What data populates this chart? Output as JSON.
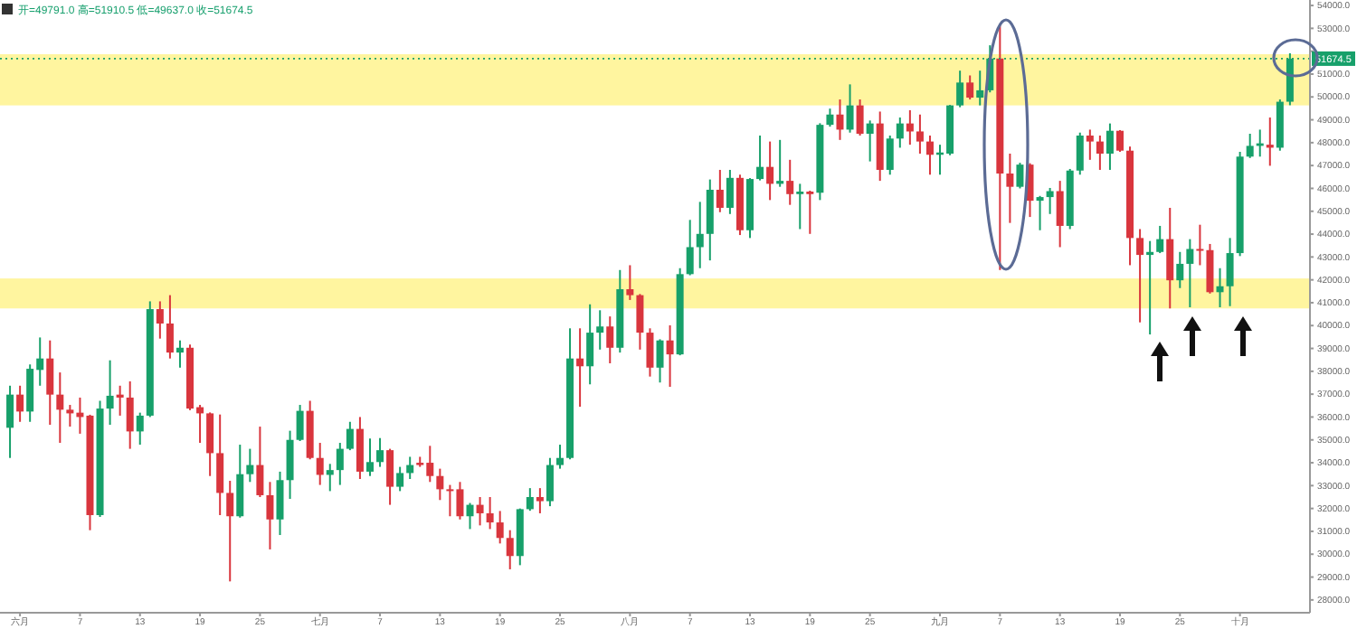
{
  "chart_data": {
    "type": "candlestick",
    "title": "开=49791.0 高=51910.5 低=49637.0 收=51674.5",
    "x": [
      "--05-31",
      "--06-01",
      "--06-02",
      "--06-03",
      "--06-04",
      "--06-05",
      "--06-06",
      "--06-07",
      "--06-08",
      "--06-09",
      "--06-10",
      "--06-11",
      "--06-12",
      "--06-13",
      "--06-14",
      "--06-15",
      "--06-16",
      "--06-17",
      "--06-18",
      "--06-19",
      "--06-20",
      "--06-21",
      "--06-22",
      "--06-23",
      "--06-24",
      "--06-25",
      "--06-26",
      "--06-27",
      "--06-28",
      "--06-29",
      "--06-30",
      "--07-01",
      "--07-02",
      "--07-03",
      "--07-04",
      "--07-05",
      "--07-06",
      "--07-07",
      "--07-08",
      "--07-09",
      "--07-10",
      "--07-11",
      "--07-12",
      "--07-13",
      "--07-14",
      "--07-15",
      "--07-16",
      "--07-17",
      "--07-18",
      "--07-19",
      "--07-20",
      "--07-21",
      "--07-22",
      "--07-23",
      "--07-24",
      "--07-25",
      "--07-26",
      "--07-27",
      "--07-28",
      "--07-29",
      "--07-30",
      "--07-31",
      "--08-01",
      "--08-02",
      "--08-03",
      "--08-04",
      "--08-05",
      "--08-06",
      "--08-07",
      "--08-08",
      "--08-09",
      "--08-10",
      "--08-11",
      "--08-12",
      "--08-13",
      "--08-14",
      "--08-15",
      "--08-16",
      "--08-17",
      "--08-18",
      "--08-19",
      "--08-20",
      "--08-21",
      "--08-22",
      "--08-23",
      "--08-24",
      "--08-25",
      "--08-26",
      "--08-27",
      "--08-28",
      "--08-29",
      "--08-30",
      "--08-31",
      "--09-01",
      "--09-02",
      "--09-03",
      "--09-04",
      "--09-05",
      "--09-06",
      "--09-07",
      "--09-08",
      "--09-09",
      "--09-10",
      "--09-11",
      "--09-12",
      "--09-13",
      "--09-14",
      "--09-15",
      "--09-16",
      "--09-17",
      "--09-18",
      "--09-19",
      "--09-20",
      "--09-21",
      "--09-22",
      "--09-23",
      "--09-24",
      "--09-25",
      "--09-26",
      "--09-27",
      "--09-28",
      "--09-29",
      "--09-30",
      "--10-01",
      "--10-02",
      "--10-03",
      "--10-04",
      "--10-05",
      "--10-06"
    ],
    "ohlc": [
      [
        35530,
        37370,
        34210,
        36980
      ],
      [
        36980,
        37370,
        35790,
        36240
      ],
      [
        36240,
        38300,
        35790,
        38110
      ],
      [
        38060,
        39480,
        37370,
        38560
      ],
      [
        38560,
        39350,
        35660,
        36980
      ],
      [
        36980,
        37950,
        34870,
        36320
      ],
      [
        36320,
        36530,
        35580,
        36160
      ],
      [
        36190,
        36850,
        35270,
        36000
      ],
      [
        36060,
        36100,
        31050,
        31710
      ],
      [
        31710,
        36710,
        31630,
        36370
      ],
      [
        36370,
        38480,
        35660,
        36930
      ],
      [
        36980,
        37370,
        36060,
        36850
      ],
      [
        36850,
        37560,
        34610,
        35370
      ],
      [
        35370,
        36190,
        34790,
        36060
      ],
      [
        36060,
        41060,
        36000,
        40720
      ],
      [
        40720,
        41060,
        39430,
        40090
      ],
      [
        40090,
        41330,
        38560,
        38820
      ],
      [
        38820,
        39350,
        38160,
        39030
      ],
      [
        39030,
        39170,
        36300,
        36370
      ],
      [
        36430,
        36530,
        34870,
        36160
      ],
      [
        36160,
        36200,
        33420,
        34420
      ],
      [
        34420,
        36110,
        31710,
        32680
      ],
      [
        32680,
        33210,
        28810,
        31660
      ],
      [
        31660,
        34790,
        31600,
        33500
      ],
      [
        33500,
        34610,
        33160,
        33900
      ],
      [
        33900,
        35580,
        32500,
        32580
      ],
      [
        32580,
        33160,
        30210,
        31520
      ],
      [
        31520,
        33610,
        30840,
        33240
      ],
      [
        33240,
        35400,
        32420,
        35000
      ],
      [
        35000,
        36530,
        34950,
        36270
      ],
      [
        36270,
        36710,
        34150,
        34210
      ],
      [
        34210,
        34870,
        33030,
        33470
      ],
      [
        33470,
        33950,
        32760,
        33680
      ],
      [
        33680,
        34870,
        33030,
        34610
      ],
      [
        34610,
        35790,
        34550,
        35480
      ],
      [
        35480,
        36000,
        33290,
        33610
      ],
      [
        33610,
        35060,
        33420,
        34030
      ],
      [
        34030,
        35080,
        33820,
        34550
      ],
      [
        34550,
        34610,
        32160,
        32950
      ],
      [
        32950,
        33820,
        32760,
        33550
      ],
      [
        33550,
        34260,
        33290,
        33900
      ],
      [
        34000,
        34260,
        33820,
        33900
      ],
      [
        34000,
        34740,
        33160,
        33420
      ],
      [
        33420,
        33740,
        32370,
        32840
      ],
      [
        32840,
        33030,
        31660,
        32760
      ],
      [
        32840,
        33160,
        31520,
        31660
      ],
      [
        31660,
        32240,
        31100,
        32160
      ],
      [
        32160,
        32500,
        31260,
        31790
      ],
      [
        31790,
        32500,
        31100,
        31390
      ],
      [
        31390,
        31890,
        30470,
        30710
      ],
      [
        30710,
        31050,
        29340,
        29920
      ],
      [
        29920,
        32000,
        29520,
        31970
      ],
      [
        31970,
        32890,
        31900,
        32500
      ],
      [
        32500,
        32890,
        31790,
        32320
      ],
      [
        32320,
        34210,
        32100,
        33900
      ],
      [
        33900,
        34790,
        33740,
        34210
      ],
      [
        34210,
        39880,
        34150,
        38560
      ],
      [
        38560,
        39880,
        36450,
        38220
      ],
      [
        38220,
        40930,
        37430,
        39690
      ],
      [
        39690,
        40670,
        38950,
        39960
      ],
      [
        39960,
        40400,
        38350,
        39030
      ],
      [
        39030,
        42430,
        38820,
        41590
      ],
      [
        41590,
        42640,
        41120,
        41330
      ],
      [
        41330,
        41380,
        38950,
        39690
      ],
      [
        39690,
        39880,
        37770,
        38160
      ],
      [
        38160,
        39400,
        37510,
        39350
      ],
      [
        39350,
        40010,
        37320,
        38740
      ],
      [
        38740,
        42510,
        38700,
        42250
      ],
      [
        42250,
        44620,
        42200,
        43430
      ],
      [
        43430,
        45410,
        42510,
        44010
      ],
      [
        44010,
        46390,
        42850,
        45940
      ],
      [
        45940,
        46810,
        44960,
        45150
      ],
      [
        45150,
        46810,
        44880,
        46460
      ],
      [
        46460,
        46600,
        43960,
        44170
      ],
      [
        44170,
        46450,
        43830,
        46410
      ],
      [
        46410,
        48310,
        46350,
        46940
      ],
      [
        46940,
        48050,
        45490,
        46200
      ],
      [
        46200,
        48120,
        46070,
        46330
      ],
      [
        46330,
        47250,
        45280,
        45750
      ],
      [
        45750,
        46200,
        44220,
        45860
      ],
      [
        45860,
        45900,
        44010,
        45750
      ],
      [
        45810,
        48850,
        45490,
        48780
      ],
      [
        48780,
        49490,
        48700,
        49230
      ],
      [
        49230,
        49890,
        48120,
        48570
      ],
      [
        48570,
        50550,
        48440,
        49630
      ],
      [
        49630,
        49890,
        48310,
        48390
      ],
      [
        48390,
        48970,
        47180,
        48840
      ],
      [
        48840,
        49360,
        46330,
        46810
      ],
      [
        46810,
        48310,
        46600,
        48180
      ],
      [
        48180,
        49100,
        47780,
        48840
      ],
      [
        48840,
        49420,
        47910,
        48490
      ],
      [
        48490,
        49230,
        47520,
        48050
      ],
      [
        48050,
        48310,
        46600,
        47470
      ],
      [
        47470,
        47910,
        46600,
        47570
      ],
      [
        47520,
        49650,
        47450,
        49630
      ],
      [
        49630,
        51150,
        49550,
        50630
      ],
      [
        50630,
        50940,
        49890,
        49970
      ],
      [
        49970,
        51150,
        49630,
        50290
      ],
      [
        50290,
        52260,
        50200,
        51680
      ],
      [
        51680,
        53180,
        42430,
        46650
      ],
      [
        46650,
        47520,
        44490,
        46070
      ],
      [
        46070,
        47120,
        46000,
        47040
      ],
      [
        47040,
        47100,
        44750,
        45460
      ],
      [
        45460,
        45670,
        44170,
        45620
      ],
      [
        45620,
        46020,
        44880,
        45880
      ],
      [
        45880,
        46330,
        43430,
        44360
      ],
      [
        44360,
        46850,
        44220,
        46780
      ],
      [
        46780,
        48440,
        46600,
        48310
      ],
      [
        48310,
        48570,
        47250,
        48050
      ],
      [
        48050,
        48310,
        46810,
        47520
      ],
      [
        47520,
        48840,
        46810,
        48520
      ],
      [
        48520,
        48550,
        47600,
        47650
      ],
      [
        47650,
        47830,
        42640,
        43830
      ],
      [
        43830,
        44220,
        40140,
        43090
      ],
      [
        43090,
        43700,
        39610,
        43220
      ],
      [
        43220,
        44360,
        43170,
        43780
      ],
      [
        43780,
        45150,
        40750,
        41980
      ],
      [
        41980,
        43220,
        41640,
        42700
      ],
      [
        42700,
        43780,
        40800,
        43350
      ],
      [
        43350,
        44410,
        42640,
        43300
      ],
      [
        43300,
        43570,
        41400,
        41460
      ],
      [
        41460,
        42510,
        40800,
        41720
      ],
      [
        41720,
        43830,
        40850,
        43170
      ],
      [
        43170,
        47600,
        43040,
        47390
      ],
      [
        47390,
        48390,
        47330,
        47860
      ],
      [
        47860,
        48570,
        47390,
        47970
      ],
      [
        47910,
        49100,
        46990,
        47780
      ],
      [
        47780,
        49890,
        47650,
        49790
      ],
      [
        49791,
        51910.5,
        49637,
        51674.5
      ]
    ],
    "xlim": [
      "--05-30",
      "--10-08"
    ],
    "xticks": [
      {
        "value": "--06-01",
        "label": "六月"
      },
      {
        "value": "--06-07",
        "label": "7"
      },
      {
        "value": "--06-13",
        "label": "13"
      },
      {
        "value": "--06-19",
        "label": "19"
      },
      {
        "value": "--06-25",
        "label": "25"
      },
      {
        "value": "--07-01",
        "label": "七月"
      },
      {
        "value": "--07-07",
        "label": "7"
      },
      {
        "value": "--07-13",
        "label": "13"
      },
      {
        "value": "--07-19",
        "label": "19"
      },
      {
        "value": "--07-25",
        "label": "25"
      },
      {
        "value": "--08-01",
        "label": "八月"
      },
      {
        "value": "--08-07",
        "label": "7"
      },
      {
        "value": "--08-13",
        "label": "13"
      },
      {
        "value": "--08-19",
        "label": "19"
      },
      {
        "value": "--08-25",
        "label": "25"
      },
      {
        "value": "--09-01",
        "label": "九月"
      },
      {
        "value": "--09-07",
        "label": "7"
      },
      {
        "value": "--09-13",
        "label": "13"
      },
      {
        "value": "--09-19",
        "label": "19"
      },
      {
        "value": "--09-25",
        "label": "25"
      },
      {
        "value": "--10-01",
        "label": "十月"
      }
    ],
    "ylim": [
      27440,
      54240
    ],
    "yticks": [
      {
        "value": 28000,
        "label": "28000.0"
      },
      {
        "value": 29000,
        "label": "29000.0"
      },
      {
        "value": 30000,
        "label": "30000.0"
      },
      {
        "value": 31000,
        "label": "31000.0"
      },
      {
        "value": 32000,
        "label": "32000.0"
      },
      {
        "value": 33000,
        "label": "33000.0"
      },
      {
        "value": 34000,
        "label": "34000.0"
      },
      {
        "value": 35000,
        "label": "35000.0"
      },
      {
        "value": 36000,
        "label": "36000.0"
      },
      {
        "value": 37000,
        "label": "37000.0"
      },
      {
        "value": 38000,
        "label": "38000.0"
      },
      {
        "value": 39000,
        "label": "39000.0"
      },
      {
        "value": 40000,
        "label": "40000.0"
      },
      {
        "value": 41000,
        "label": "41000.0"
      },
      {
        "value": 42000,
        "label": "42000.0"
      },
      {
        "value": 43000,
        "label": "43000.0"
      },
      {
        "value": 44000,
        "label": "44000.0"
      },
      {
        "value": 45000,
        "label": "45000.0"
      },
      {
        "value": 46000,
        "label": "46000.0"
      },
      {
        "value": 47000,
        "label": "47000.0"
      },
      {
        "value": 48000,
        "label": "48000.0"
      },
      {
        "value": 49000,
        "label": "49000.0"
      },
      {
        "value": 50000,
        "label": "50000.0"
      },
      {
        "value": 51000,
        "label": "51000.0"
      },
      {
        "value": 52000,
        "label": null
      },
      {
        "value": 53000,
        "label": "53000.0"
      },
      {
        "value": 54000,
        "label": "54000.0"
      }
    ],
    "bands": [
      {
        "axis": "y",
        "from": 49630,
        "to": 51870,
        "color": "#fff176"
      },
      {
        "axis": "y",
        "from": 40750,
        "to": 42060,
        "color": "#fff176"
      }
    ],
    "ref_lines": [
      {
        "axis": "y",
        "value": 51674.5,
        "label": "51674.5",
        "color": "#17a06a",
        "line_style": "dotted"
      }
    ]
  }
}
